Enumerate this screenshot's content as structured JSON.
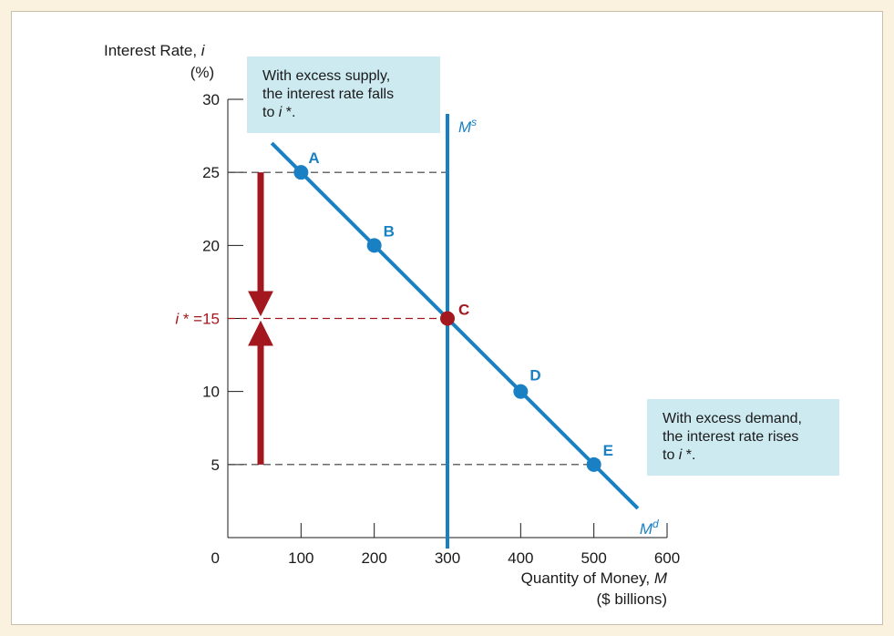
{
  "chart_data": {
    "type": "line",
    "ylabel": "Interest Rate, i",
    "ylabel_unit": "(%)",
    "xlabel": "Quantity of Money, M",
    "xlabel_unit": "($ billions)",
    "xlim": [
      0,
      600
    ],
    "ylim": [
      0,
      30
    ],
    "x_ticks": [
      0,
      100,
      200,
      300,
      400,
      500,
      600
    ],
    "y_ticks": [
      5,
      10,
      15,
      20,
      25,
      30
    ],
    "x_origin_label": "0",
    "equilibrium_label": "i * =15",
    "money_supply": {
      "name": "Ms",
      "name_base": "M",
      "name_sup": "s",
      "x": 300,
      "y_range": [
        0,
        29
      ]
    },
    "money_demand": {
      "name": "Md",
      "name_base": "M",
      "name_sup": "d",
      "x": [
        60,
        560
      ],
      "y": [
        27.0,
        2.0
      ]
    },
    "points": [
      {
        "label": "A",
        "x": 100,
        "y": 25,
        "color": "#1a80c4"
      },
      {
        "label": "B",
        "x": 200,
        "y": 20,
        "color": "#1a80c4"
      },
      {
        "label": "C",
        "x": 300,
        "y": 15,
        "color": "#a3171e"
      },
      {
        "label": "D",
        "x": 400,
        "y": 10,
        "color": "#1a80c4"
      },
      {
        "label": "E",
        "x": 500,
        "y": 5,
        "color": "#1a80c4"
      }
    ],
    "annotations": [
      {
        "lines": [
          "With excess supply,",
          "the interest rate falls",
          "to i *."
        ]
      },
      {
        "lines": [
          "With excess demand,",
          "the interest rate rises",
          "to i *."
        ]
      }
    ],
    "grid": false,
    "colors": {
      "curve": "#1a80c4",
      "arrow": "#a3171e",
      "equilibrium_text": "#a3171e",
      "note_box": "#cdeaf0",
      "background": "#fbf1df"
    }
  }
}
